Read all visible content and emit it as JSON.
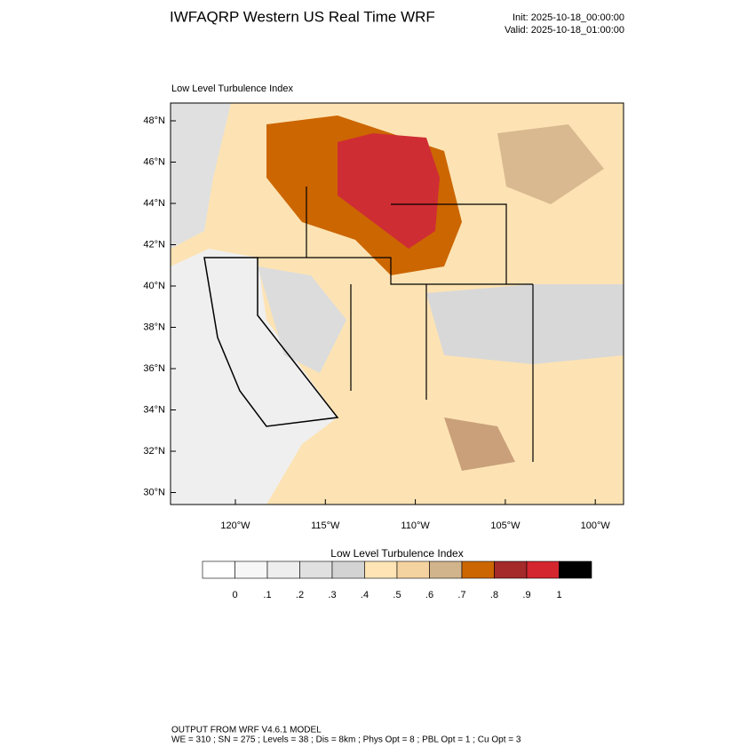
{
  "header": {
    "title": "IWFAQRP Western US Real Time WRF",
    "init": "Init: 2025-10-18_00:00:00",
    "valid": "Valid: 2025-10-18_01:00:00"
  },
  "map": {
    "subtitle": "Low Level Turbulence Index",
    "lat_labels": [
      "48°N",
      "46°N",
      "44°N",
      "42°N",
      "40°N",
      "38°N",
      "36°N",
      "34°N",
      "32°N",
      "30°N"
    ],
    "lon_labels": [
      "120°W",
      "115°W",
      "110°W",
      "105°W",
      "100°W"
    ]
  },
  "colorbar": {
    "title": "Low Level Turbulence Index",
    "labels": [
      "0",
      ".1",
      ".2",
      ".3",
      ".4",
      ".5",
      ".6",
      ".7",
      ".8",
      ".9",
      "1"
    ],
    "colors": [
      "#ffffff",
      "#f7f7f7",
      "#eeeeee",
      "#e0e0e0",
      "#d3d3d3",
      "#ffe4b5",
      "#f5d3a0",
      "#d2b48c",
      "#cc6600",
      "#a52a2a",
      "#d3262e",
      "#000000"
    ]
  },
  "footer": {
    "line1": "OUTPUT FROM WRF V4.6.1 MODEL",
    "line2": "WE = 310 ; SN = 275 ; Levels = 38 ; Dis = 8km ; Phys Opt = 8 ; PBL Opt = 1 ; Cu Opt = 3"
  }
}
